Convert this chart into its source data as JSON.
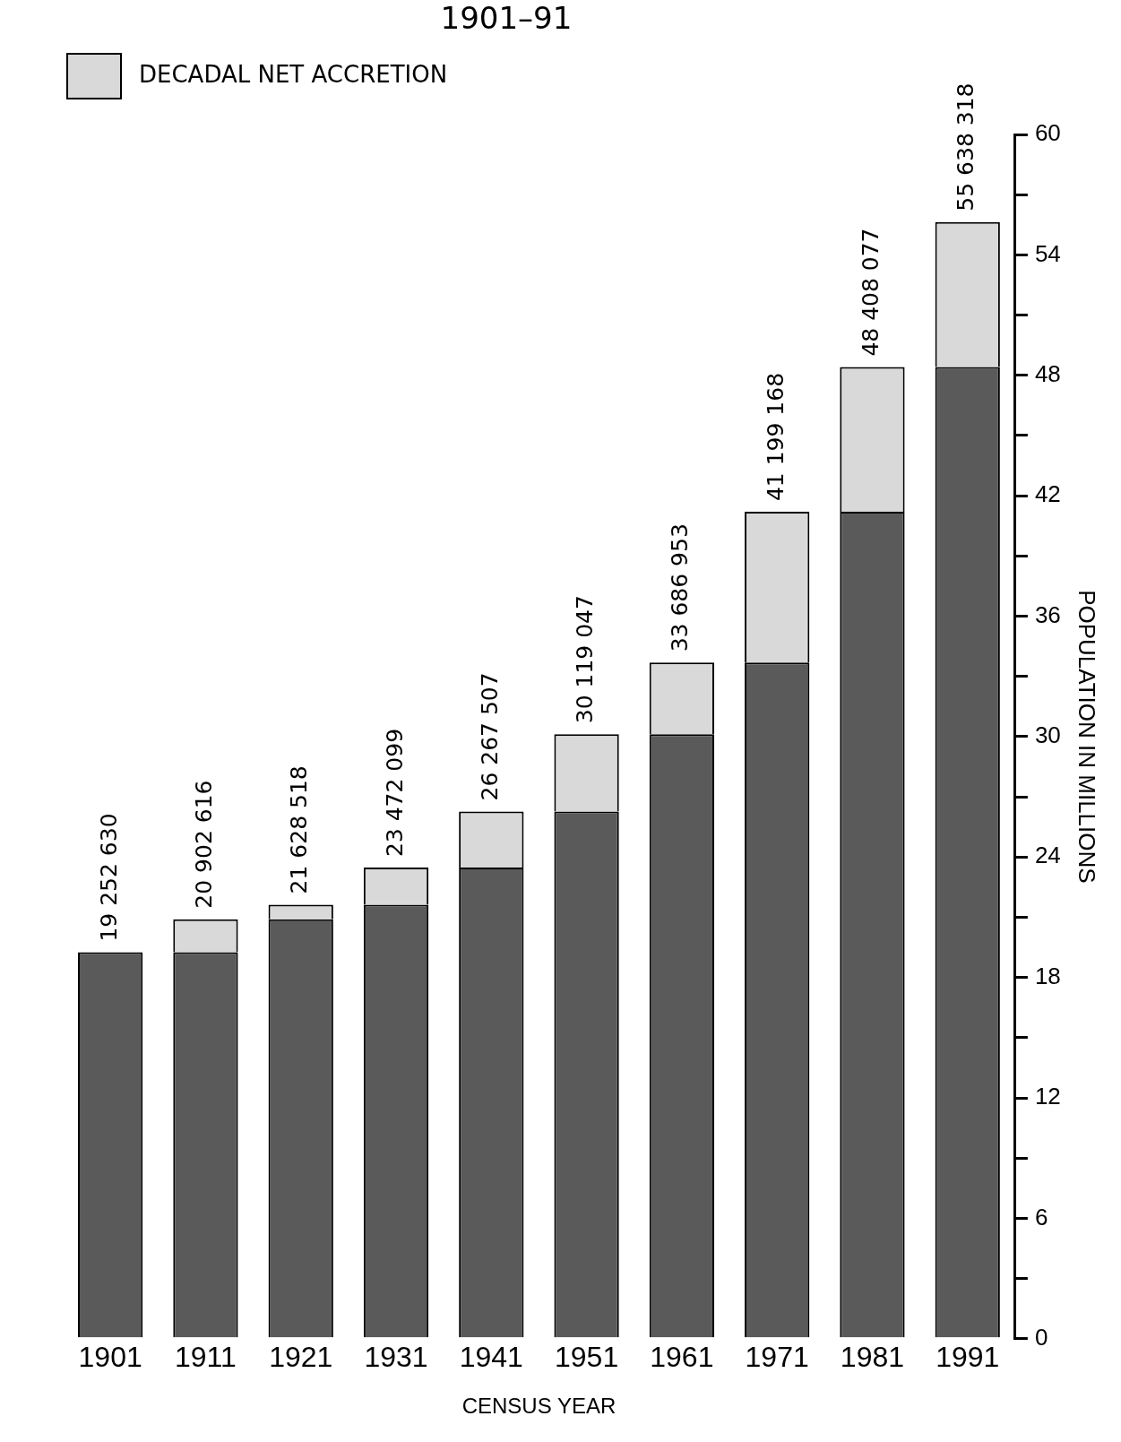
{
  "chart_data": {
    "type": "bar",
    "title": "1901–91",
    "xlabel": "CENSUS YEAR",
    "ylabel": "POPULATION IN MILLIONS",
    "categories": [
      "1901",
      "1911",
      "1921",
      "1931",
      "1941",
      "1951",
      "1961",
      "1971",
      "1981",
      "1991"
    ],
    "stacked": true,
    "series": [
      {
        "color": "#5a5a5a",
        "values": [
          19.25263,
          19.25263,
          20.902616,
          21.628518,
          23.472099,
          26.267507,
          30.119047,
          33.686953,
          41.199168,
          48.408077
        ]
      },
      {
        "name": "DECADAL NET ACCRETION",
        "color": "#d9d9d9",
        "values": [
          null,
          1.649986,
          0.725902,
          1.843581,
          2.795408,
          3.85154,
          3.567906,
          7.512215,
          7.208909,
          7.230241
        ]
      }
    ],
    "totals": [
      "19 252 630",
      "20 902 616",
      "21 628 518",
      "23 472 099",
      "26 267 507",
      "30 119 047",
      "33 686 953",
      "41 199 168",
      "48 408 077",
      "55 638 318"
    ],
    "ylim": [
      0,
      60
    ],
    "yticks": [
      0,
      {
        "value": 3,
        "label": null
      },
      6,
      {
        "value": 9,
        "label": null
      },
      12,
      {
        "value": 15,
        "label": null
      },
      18,
      {
        "value": 21,
        "label": null
      },
      24,
      {
        "value": 27,
        "label": null
      },
      30,
      {
        "value": 33,
        "label": null
      },
      36,
      {
        "value": 39,
        "label": null
      },
      42,
      {
        "value": 45,
        "label": null
      },
      48,
      {
        "value": 51,
        "label": null
      },
      54,
      {
        "value": 57,
        "label": null
      },
      60
    ],
    "grid": false,
    "legend": "top left"
  }
}
